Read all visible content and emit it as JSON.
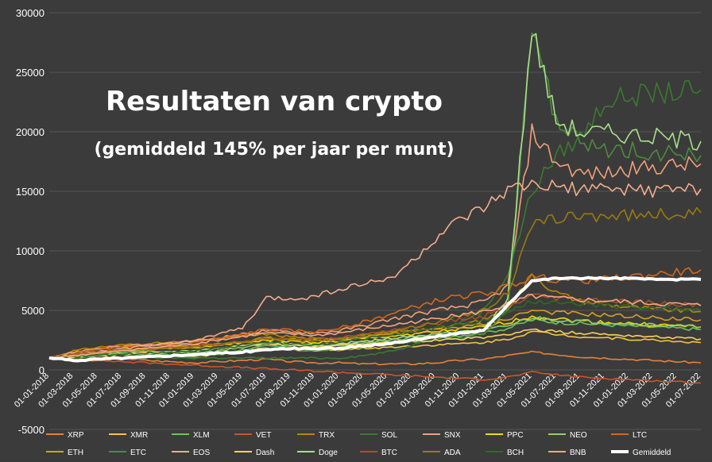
{
  "chart_data": {
    "type": "line",
    "title": "Resultaten van crypto",
    "subtitle": "(gemiddeld 145% per jaar per munt)",
    "xlabel": "",
    "ylabel": "",
    "ylim": [
      -5000,
      30000
    ],
    "yticks": [
      -5000,
      0,
      5000,
      10000,
      15000,
      20000,
      25000,
      30000
    ],
    "ytick_labels": [
      "-5000",
      "0",
      "5000",
      "10000",
      "15000",
      "20000",
      "25000",
      "30000"
    ],
    "grid": true,
    "legend_position": "bottom",
    "x_dates": [
      "01-01-2018",
      "01-03-2018",
      "01-05-2018",
      "01-07-2018",
      "01-09-2018",
      "01-11-2018",
      "01-01-2019",
      "01-03-2019",
      "01-05-2019",
      "01-07-2019",
      "01-09-2019",
      "01-11-2019",
      "01-01-2020",
      "01-03-2020",
      "01-05-2020",
      "01-07-2020",
      "01-09-2020",
      "01-11-2020",
      "01-01-2021",
      "01-03-2021",
      "01-05-2021",
      "01-07-2021",
      "01-09-2021",
      "01-11-2021",
      "01-01-2022",
      "01-03-2022",
      "01-05-2022",
      "01-07-2022"
    ],
    "series": [
      {
        "name": "XRP",
        "color": "#e8803a",
        "values": [
          1000,
          1400,
          1200,
          1000,
          800,
          700,
          600,
          700,
          800,
          900,
          700,
          600,
          600,
          500,
          500,
          500,
          600,
          800,
          900,
          1200,
          1500,
          1300,
          1100,
          1000,
          900,
          800,
          700,
          600
        ]
      },
      {
        "name": "XMR",
        "color": "#f5c342",
        "values": [
          1000,
          1300,
          1500,
          1400,
          1300,
          1200,
          1100,
          1300,
          1600,
          1800,
          1700,
          1600,
          1700,
          1800,
          1900,
          2000,
          2100,
          2200,
          2300,
          2600,
          3200,
          3000,
          2800,
          2700,
          2600,
          2500,
          2400,
          2300
        ]
      },
      {
        "name": "XLM",
        "color": "#6ec25a",
        "values": [
          1000,
          1200,
          1400,
          1500,
          1400,
          1300,
          1200,
          1400,
          1700,
          2000,
          1900,
          1800,
          1900,
          2100,
          2300,
          2500,
          2700,
          2900,
          3100,
          3500,
          4200,
          4000,
          3900,
          3800,
          3700,
          3600,
          3500,
          3400
        ]
      },
      {
        "name": "VET",
        "color": "#c9562a",
        "values": [
          1000,
          900,
          800,
          700,
          600,
          500,
          400,
          300,
          200,
          100,
          0,
          -100,
          -200,
          -300,
          -400,
          -500,
          -600,
          -700,
          -800,
          -600,
          -200,
          -400,
          -600,
          -700,
          -800,
          -900,
          -1000,
          -1100
        ]
      },
      {
        "name": "TRX",
        "color": "#b8860b",
        "values": [
          1000,
          1600,
          1900,
          2100,
          2200,
          2300,
          2400,
          2600,
          2800,
          3000,
          2800,
          2600,
          2700,
          2900,
          3100,
          3300,
          3500,
          3800,
          4200,
          5200,
          8000,
          6500,
          5800,
          5500,
          5300,
          5100,
          5000,
          4900
        ]
      },
      {
        "name": "SOL",
        "color": "#3a7a30",
        "values": [
          1000,
          1000,
          1000,
          1000,
          1000,
          1000,
          1000,
          1000,
          1000,
          1000,
          1000,
          1000,
          1000,
          1200,
          1500,
          2000,
          3000,
          4000,
          5000,
          8000,
          15000,
          18000,
          19500,
          22500,
          23000,
          23200,
          23300,
          23500
        ]
      },
      {
        "name": "SNX",
        "color": "#f0a07a",
        "values": [
          1000,
          1500,
          1800,
          2000,
          2100,
          2200,
          2400,
          2700,
          3000,
          3300,
          3200,
          3100,
          3300,
          3700,
          4200,
          4600,
          5000,
          5300,
          5700,
          7000,
          20000,
          17500,
          16500,
          16500,
          16800,
          17000,
          17200,
          17300
        ]
      },
      {
        "name": "PPC",
        "color": "#ffd700",
        "values": [
          1000,
          1200,
          1400,
          1600,
          1700,
          1800,
          1900,
          2100,
          2300,
          2500,
          2400,
          2300,
          2400,
          2600,
          2800,
          3000,
          3200,
          3400,
          3600,
          4000,
          4500,
          4300,
          4100,
          4000,
          3900,
          3800,
          3700,
          3600
        ]
      },
      {
        "name": "NEO",
        "color": "#8fd06a",
        "values": [
          1000,
          1300,
          1500,
          1600,
          1600,
          1500,
          1400,
          1600,
          1900,
          2200,
          2100,
          2000,
          2100,
          2300,
          2500,
          2700,
          2900,
          3100,
          3300,
          3700,
          4400,
          4200,
          4100,
          4000,
          3900,
          3800,
          3700,
          3600
        ]
      },
      {
        "name": "LTC",
        "color": "#d2691e",
        "values": [
          1000,
          1400,
          1700,
          1900,
          2000,
          2100,
          2300,
          2600,
          3000,
          3400,
          3300,
          3200,
          3500,
          4000,
          4600,
          5200,
          5800,
          6200,
          6400,
          7000,
          7800,
          7600,
          7500,
          7600,
          7800,
          8000,
          8200,
          8400
        ]
      },
      {
        "name": "ETH",
        "color": "#d4a020",
        "values": [
          1000,
          1300,
          1500,
          1700,
          1800,
          1900,
          2000,
          2200,
          2400,
          2700,
          2600,
          2500,
          2600,
          2800,
          3000,
          3200,
          3400,
          3600,
          3800,
          4300,
          5000,
          4800,
          4700,
          4600,
          4500,
          4400,
          4300,
          4200
        ]
      },
      {
        "name": "ETC",
        "color": "#4e8a3e",
        "values": [
          1000,
          1100,
          1200,
          1300,
          1300,
          1200,
          1100,
          1300,
          1500,
          1800,
          1700,
          1600,
          1700,
          1900,
          2100,
          2300,
          2500,
          2700,
          3000,
          5000,
          29000,
          21000,
          19000,
          18500,
          18500,
          18300,
          18200,
          18000
        ]
      },
      {
        "name": "EOS",
        "color": "#f2ad8c",
        "values": [
          1000,
          1200,
          1500,
          1800,
          2000,
          2200,
          2500,
          3000,
          3500,
          6000,
          6000,
          6200,
          6800,
          7200,
          7600,
          9000,
          11000,
          12500,
          13500,
          15000,
          15500,
          15300,
          15200,
          15100,
          15200,
          15100,
          15200,
          15200
        ]
      },
      {
        "name": "Dash",
        "color": "#f8d060",
        "values": [
          1000,
          1100,
          1200,
          1300,
          1400,
          1500,
          1600,
          1800,
          2000,
          2200,
          2100,
          2000,
          2100,
          2200,
          2300,
          2400,
          2500,
          2600,
          2700,
          3000,
          3400,
          3200,
          3100,
          3000,
          2900,
          2800,
          2700,
          2600
        ]
      },
      {
        "name": "Doge",
        "color": "#a8e08a",
        "values": [
          1000,
          1100,
          1200,
          1300,
          1400,
          1500,
          1600,
          1800,
          2000,
          2300,
          2200,
          2100,
          2200,
          2400,
          2600,
          2800,
          3000,
          3200,
          3400,
          6000,
          28800,
          21000,
          20000,
          20000,
          19800,
          19600,
          19400,
          19200
        ]
      },
      {
        "name": "BTC",
        "color": "#a0522d",
        "values": [
          1000,
          1300,
          1500,
          1700,
          1800,
          1900,
          2000,
          2200,
          2400,
          2700,
          2600,
          2500,
          2700,
          3000,
          3300,
          3600,
          3900,
          4200,
          4500,
          5200,
          6200,
          6000,
          5900,
          5800,
          5700,
          5600,
          5500,
          5400
        ]
      },
      {
        "name": "ADA",
        "color": "#9a7a10",
        "values": [
          1000,
          1200,
          1400,
          1600,
          1700,
          1800,
          1900,
          2100,
          2300,
          2600,
          2500,
          2400,
          2600,
          2900,
          3200,
          3600,
          4000,
          4500,
          5000,
          6500,
          12000,
          12800,
          12900,
          13000,
          13000,
          13100,
          13100,
          13200
        ]
      },
      {
        "name": "BCH",
        "color": "#2f6a25",
        "values": [
          1000,
          1100,
          1200,
          1300,
          1400,
          1500,
          1600,
          1800,
          2000,
          2300,
          2200,
          2100,
          2300,
          2600,
          2900,
          3200,
          3500,
          3800,
          4100,
          4800,
          5800,
          5600,
          5500,
          5400,
          5300,
          5200,
          5100,
          5000
        ]
      },
      {
        "name": "BNB",
        "color": "#f4a880",
        "values": [
          1000,
          1200,
          1400,
          1600,
          1800,
          2000,
          2200,
          2500,
          2800,
          3100,
          3000,
          2900,
          3100,
          3400,
          3700,
          4000,
          4300,
          4600,
          4900,
          5500,
          6200,
          6000,
          5900,
          5800,
          5700,
          5600,
          5500,
          5400
        ]
      },
      {
        "name": "Gemiddeld",
        "color": "#ffffff",
        "values": [
          1000,
          800,
          900,
          1000,
          1100,
          1200,
          1300,
          1400,
          1500,
          1700,
          1800,
          1800,
          1800,
          2000,
          2200,
          2500,
          2800,
          3100,
          3300,
          5500,
          7500,
          7700,
          7700,
          7700,
          7700,
          7600,
          7600,
          7600
        ]
      }
    ]
  }
}
